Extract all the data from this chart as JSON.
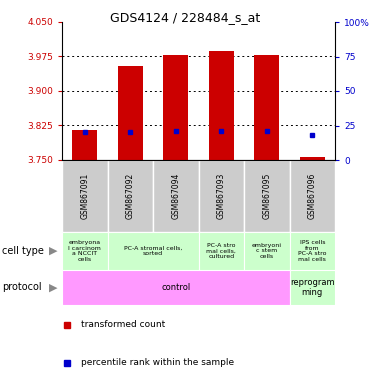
{
  "title": "GDS4124 / 228484_s_at",
  "samples": [
    "GSM867091",
    "GSM867092",
    "GSM867094",
    "GSM867093",
    "GSM867095",
    "GSM867096"
  ],
  "transformed_count": [
    3.815,
    3.955,
    3.978,
    3.988,
    3.978,
    3.757
  ],
  "percentile_rank": [
    20,
    20,
    21,
    21,
    21,
    18
  ],
  "ylim_left": [
    3.75,
    4.05
  ],
  "ylim_right": [
    0,
    100
  ],
  "yticks_left": [
    3.75,
    3.825,
    3.9,
    3.975,
    4.05
  ],
  "yticks_right": [
    0,
    25,
    50,
    75,
    100
  ],
  "ytick_right_labels": [
    "0",
    "25",
    "50",
    "75",
    "100%"
  ],
  "bar_base": 3.75,
  "bar_width": 0.55,
  "cell_info": [
    [
      0,
      1,
      "embryona\nl carcinom\na NCCIT\ncells"
    ],
    [
      1,
      3,
      "PC-A stromal cells,\nsorted"
    ],
    [
      3,
      4,
      "PC-A stro\nmal cells,\ncultured"
    ],
    [
      4,
      5,
      "embryoni\nc stem\ncells"
    ],
    [
      5,
      6,
      "IPS cells\nfrom\nPC-A stro\nmal cells"
    ]
  ],
  "proto_info": [
    [
      0,
      5,
      "control",
      "#ff99ff"
    ],
    [
      5,
      6,
      "reprogram\nming",
      "#ccffcc"
    ]
  ],
  "cell_bg": "#ccffcc",
  "sample_bg": "#cccccc",
  "bar_color": "#cc0000",
  "dot_color": "#0000cc",
  "left_tick_color": "#cc0000",
  "right_tick_color": "#0000cc",
  "grid_color": "black"
}
